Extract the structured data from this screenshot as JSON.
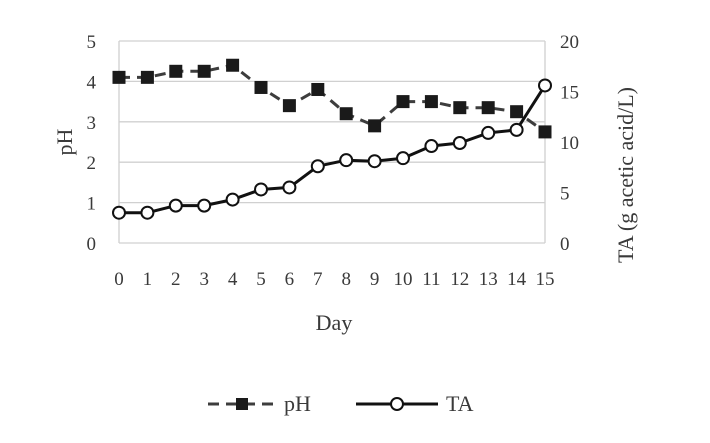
{
  "chart_data": {
    "type": "line",
    "title": "",
    "xlabel": "Day",
    "ylabel_left": "pH",
    "ylabel_right": "TA (g acetic acid/L)",
    "x": [
      0,
      1,
      2,
      3,
      4,
      5,
      6,
      7,
      8,
      9,
      10,
      11,
      12,
      13,
      14,
      15
    ],
    "x_tick_labels": [
      "0",
      "1",
      "2",
      "3",
      "4",
      "5",
      "6",
      "7",
      "8",
      "9",
      "10",
      "11",
      "12",
      "13",
      "14",
      "15"
    ],
    "ylim_left": [
      0,
      5
    ],
    "yticks_left": [
      "0",
      "1",
      "2",
      "3",
      "4",
      "5"
    ],
    "ylim_right": [
      0,
      20
    ],
    "yticks_right": [
      "0",
      "5",
      "10",
      "15",
      "20"
    ],
    "grid": "horizontal",
    "legend_position": "bottom",
    "series": [
      {
        "name": "pH",
        "axis": "left",
        "style": "dashed",
        "marker": "filled-square",
        "color": "#3d3d3d",
        "values": [
          4.1,
          4.1,
          4.25,
          4.25,
          4.4,
          3.85,
          3.4,
          3.8,
          3.2,
          2.9,
          3.5,
          3.5,
          3.35,
          3.35,
          3.25,
          2.75
        ]
      },
      {
        "name": "TA",
        "axis": "right",
        "style": "solid",
        "marker": "open-circle",
        "color": "#111111",
        "values": [
          3.0,
          3.0,
          3.7,
          3.7,
          4.3,
          5.3,
          5.5,
          7.6,
          8.2,
          8.1,
          8.4,
          9.6,
          9.9,
          10.9,
          11.2,
          15.6
        ]
      }
    ]
  }
}
